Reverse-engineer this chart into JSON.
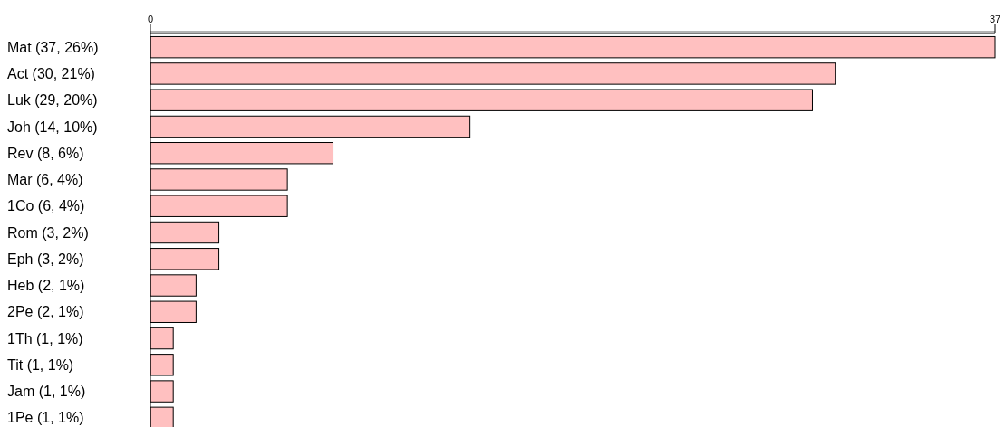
{
  "chart_data": {
    "type": "bar",
    "orientation": "horizontal",
    "categories": [
      "Mat (37, 26%)",
      "Act (30, 21%)",
      "Luk (29, 20%)",
      "Joh (14, 10%)",
      "Rev (8, 6%)",
      "Mar (6, 4%)",
      "1Co (6, 4%)",
      "Rom (3, 2%)",
      "Eph (3, 2%)",
      "Heb (2, 1%)",
      "2Pe (2, 1%)",
      "1Th (1, 1%)",
      "Tit (1, 1%)",
      "Jam (1, 1%)",
      "1Pe (1, 1%)"
    ],
    "values": [
      37,
      30,
      29,
      14,
      8,
      6,
      6,
      3,
      3,
      2,
      2,
      1,
      1,
      1,
      1
    ],
    "color": "#ffc0c0",
    "xlim": [
      0,
      37
    ],
    "xticks": [
      0,
      37
    ],
    "grid": false
  }
}
